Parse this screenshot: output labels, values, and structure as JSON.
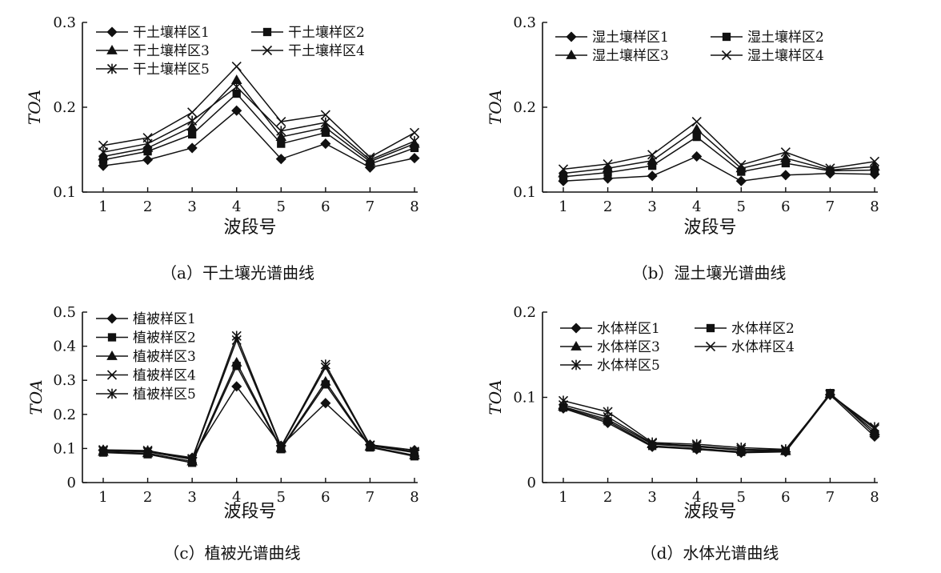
{
  "figure": {
    "background": "#ffffff",
    "ink": "#111111"
  },
  "chart_data": [
    {
      "type": "line",
      "caption": "（a）干土壤光谱曲线",
      "xlabel": "波段号",
      "ylabel": "TOA",
      "x": [
        1,
        2,
        3,
        4,
        5,
        6,
        7,
        8
      ],
      "xlim": [
        1,
        8
      ],
      "ylim": [
        0.1,
        0.3
      ],
      "yticks": [
        "0.1",
        "0.2",
        "0.3"
      ],
      "grid": false,
      "legend_position": "top-left",
      "series": [
        {
          "name": "干土壤样区1",
          "marker": "diamond",
          "values": [
            0.131,
            0.138,
            0.152,
            0.196,
            0.139,
            0.157,
            0.129,
            0.14
          ]
        },
        {
          "name": "干土壤样区2",
          "marker": "square",
          "values": [
            0.138,
            0.148,
            0.168,
            0.216,
            0.157,
            0.17,
            0.133,
            0.152
          ]
        },
        {
          "name": "干土壤样区3",
          "marker": "triangle",
          "values": [
            0.142,
            0.152,
            0.177,
            0.232,
            0.165,
            0.176,
            0.136,
            0.157
          ]
        },
        {
          "name": "干土壤样区4",
          "marker": "x",
          "values": [
            0.155,
            0.164,
            0.194,
            0.248,
            0.183,
            0.191,
            0.141,
            0.17
          ]
        },
        {
          "name": "干土壤样区5",
          "marker": "asterisk",
          "values": [
            0.147,
            0.157,
            0.184,
            0.224,
            0.172,
            0.182,
            0.138,
            0.16
          ]
        }
      ]
    },
    {
      "type": "line",
      "caption": "（b）湿土壤光谱曲线",
      "xlabel": "波段号",
      "ylabel": "TOA",
      "x": [
        1,
        2,
        3,
        4,
        5,
        6,
        7,
        8
      ],
      "xlim": [
        1,
        8
      ],
      "ylim": [
        0.1,
        0.3
      ],
      "yticks": [
        "0.1",
        "0.2",
        "0.3"
      ],
      "grid": false,
      "legend_position": "top-left",
      "series": [
        {
          "name": "湿土壤样区1",
          "marker": "diamond",
          "values": [
            0.113,
            0.116,
            0.119,
            0.142,
            0.113,
            0.12,
            0.122,
            0.121
          ]
        },
        {
          "name": "湿土壤样区2",
          "marker": "square",
          "values": [
            0.118,
            0.123,
            0.131,
            0.165,
            0.124,
            0.134,
            0.125,
            0.126
          ]
        },
        {
          "name": "湿土壤样区3",
          "marker": "triangle",
          "values": [
            0.122,
            0.128,
            0.137,
            0.174,
            0.128,
            0.14,
            0.126,
            0.13
          ]
        },
        {
          "name": "湿土壤样区4",
          "marker": "x",
          "values": [
            0.127,
            0.133,
            0.144,
            0.183,
            0.132,
            0.147,
            0.128,
            0.136
          ]
        }
      ]
    },
    {
      "type": "line",
      "caption": "（c）植被光谱曲线",
      "xlabel": "波段号",
      "ylabel": "TOA",
      "x": [
        1,
        2,
        3,
        4,
        5,
        6,
        7,
        8
      ],
      "xlim": [
        1,
        8
      ],
      "ylim": [
        0,
        0.5
      ],
      "yticks": [
        "0",
        "0.1",
        "0.2",
        "0.3",
        "0.4",
        "0.5"
      ],
      "grid": false,
      "legend_position": "top-left",
      "series": [
        {
          "name": "植被样区1",
          "marker": "diamond",
          "values": [
            0.095,
            0.092,
            0.073,
            0.282,
            0.108,
            0.233,
            0.111,
            0.095
          ]
        },
        {
          "name": "植被样区2",
          "marker": "square",
          "values": [
            0.088,
            0.083,
            0.058,
            0.342,
            0.098,
            0.288,
            0.103,
            0.077
          ]
        },
        {
          "name": "植被样区3",
          "marker": "triangle",
          "values": [
            0.09,
            0.086,
            0.062,
            0.352,
            0.1,
            0.296,
            0.105,
            0.08
          ]
        },
        {
          "name": "植被样区4",
          "marker": "x",
          "values": [
            0.093,
            0.09,
            0.068,
            0.418,
            0.104,
            0.338,
            0.108,
            0.088
          ]
        },
        {
          "name": "植被样区5",
          "marker": "asterisk",
          "values": [
            0.096,
            0.094,
            0.07,
            0.43,
            0.106,
            0.346,
            0.11,
            0.091
          ]
        }
      ]
    },
    {
      "type": "line",
      "caption": "（d）水体光谱曲线",
      "xlabel": "波段号",
      "ylabel": "TOA",
      "x": [
        1,
        2,
        3,
        4,
        5,
        6,
        7,
        8
      ],
      "xlim": [
        1,
        8
      ],
      "ylim": [
        0,
        0.2
      ],
      "yticks": [
        "0",
        "0.1",
        "0.2"
      ],
      "grid": false,
      "legend_position": "top-left",
      "series": [
        {
          "name": "水体样区1",
          "marker": "diamond",
          "values": [
            0.087,
            0.07,
            0.042,
            0.039,
            0.035,
            0.036,
            0.103,
            0.054
          ]
        },
        {
          "name": "水体样区2",
          "marker": "square",
          "values": [
            0.088,
            0.072,
            0.043,
            0.04,
            0.036,
            0.037,
            0.105,
            0.057
          ]
        },
        {
          "name": "水体样区3",
          "marker": "triangle",
          "values": [
            0.089,
            0.074,
            0.045,
            0.042,
            0.038,
            0.037,
            0.104,
            0.06
          ]
        },
        {
          "name": "水体样区4",
          "marker": "x",
          "values": [
            0.091,
            0.077,
            0.046,
            0.043,
            0.039,
            0.038,
            0.104,
            0.063
          ]
        },
        {
          "name": "水体样区5",
          "marker": "asterisk",
          "values": [
            0.096,
            0.083,
            0.047,
            0.045,
            0.041,
            0.039,
            0.103,
            0.065
          ]
        }
      ]
    }
  ]
}
